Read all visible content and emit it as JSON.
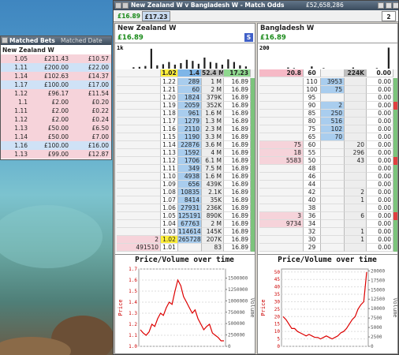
{
  "matched_bets": {
    "title": "Matched Bets",
    "date_header": "Matched Date",
    "runner": "New Zealand W",
    "rows": [
      {
        "odds": "1.05",
        "stake": "£211.43",
        "profit": "£10.57",
        "side": "lay"
      },
      {
        "odds": "1.11",
        "stake": "£200.00",
        "profit": "£22.00",
        "side": "back"
      },
      {
        "odds": "1.14",
        "stake": "£102.63",
        "profit": "£14.37",
        "side": "lay"
      },
      {
        "odds": "1.17",
        "stake": "£100.00",
        "profit": "£17.00",
        "side": "back"
      },
      {
        "odds": "1.12",
        "stake": "£96.17",
        "profit": "£11.54",
        "side": "lay"
      },
      {
        "odds": "1.1",
        "stake": "£2.00",
        "profit": "£0.20",
        "side": "lay"
      },
      {
        "odds": "1.11",
        "stake": "£2.00",
        "profit": "£0.22",
        "side": "lay"
      },
      {
        "odds": "1.12",
        "stake": "£2.00",
        "profit": "£0.24",
        "side": "lay"
      },
      {
        "odds": "1.13",
        "stake": "£50.00",
        "profit": "£6.50",
        "side": "lay"
      },
      {
        "odds": "1.14",
        "stake": "£50.00",
        "profit": "£7.00",
        "side": "lay"
      },
      {
        "odds": "1.16",
        "stake": "£100.00",
        "profit": "£16.00",
        "side": "back"
      },
      {
        "odds": "1.13",
        "stake": "£99.00",
        "profit": "£12.87",
        "side": "lay"
      }
    ]
  },
  "market": {
    "title": "New Zealand W v Bangladesh W - Match Odds",
    "total": "£52,658,286",
    "pnl": "£16.89",
    "stake_box": "£17.23",
    "count": "2",
    "runners": [
      {
        "name": "New Zealand W",
        "pnl": "£16.89",
        "s_button": "S",
        "volume_top": {
          "value": 1000,
          "label": "1k"
        },
        "volume_profile": [
          60,
          80,
          120,
          900,
          150,
          200,
          300,
          180,
          250,
          400,
          350,
          220,
          500,
          300,
          260,
          180,
          420,
          300,
          150,
          100
        ],
        "header": [
          null,
          "1.02",
          "1.4",
          "52.4 M",
          "17.23"
        ],
        "ltp_row": 20,
        "ladder": [
          [
            null,
            "1.22",
            "289",
            "1 M",
            "16.89"
          ],
          [
            null,
            "1.21",
            "60",
            "2 M",
            "16.89"
          ],
          [
            null,
            "1.20",
            "1824",
            "379K",
            "16.89"
          ],
          [
            null,
            "1.19",
            "2059",
            "352K",
            "16.89"
          ],
          [
            null,
            "1.18",
            "961",
            "1.6 M",
            "16.89"
          ],
          [
            null,
            "1.17",
            "1279",
            "1.3 M",
            "16.89"
          ],
          [
            null,
            "1.16",
            "2110",
            "2.3 M",
            "16.89"
          ],
          [
            null,
            "1.15",
            "1190",
            "3.3 M",
            "16.89"
          ],
          [
            null,
            "1.14",
            "22876",
            "3.6 M",
            "16.89"
          ],
          [
            null,
            "1.13",
            "1592",
            "4 M",
            "16.89"
          ],
          [
            null,
            "1.12",
            "1706",
            "6.1 M",
            "16.89"
          ],
          [
            null,
            "1.11",
            "349",
            "7.5 M",
            "16.89"
          ],
          [
            null,
            "1.10",
            "4938",
            "1.6 M",
            "16.89"
          ],
          [
            null,
            "1.09",
            "656",
            "439K",
            "16.89"
          ],
          [
            null,
            "1.08",
            "10835",
            "2.1K",
            "16.89"
          ],
          [
            null,
            "1.07",
            "8414",
            "35K",
            "16.89"
          ],
          [
            null,
            "1.06",
            "27931",
            "236K",
            "16.89"
          ],
          [
            null,
            "1.05",
            "125191",
            "890K",
            "16.89"
          ],
          [
            null,
            "1.04",
            "67763",
            "2 M",
            "16.89"
          ],
          [
            null,
            "1.03",
            "114614",
            "145K",
            "16.89"
          ],
          [
            "2",
            "1.02",
            "265728",
            "207K",
            "16.89"
          ],
          [
            "491510",
            "1.01",
            null,
            "83",
            "16.89"
          ]
        ],
        "chart": {
          "title": "Price/Volume over time",
          "ylabel": "Price",
          "y2label": "Volume",
          "ylim": [
            1.0,
            1.7
          ],
          "yticks": [
            {
              "value": 1.0,
              "label": "1.0"
            },
            {
              "value": 1.1,
              "label": "1.1"
            },
            {
              "value": 1.2,
              "label": "1.2"
            },
            {
              "value": 1.3,
              "label": "1.3"
            },
            {
              "value": 1.4,
              "label": "1.4"
            },
            {
              "value": 1.5,
              "label": "1.5"
            },
            {
              "value": 1.6,
              "label": "1.6"
            },
            {
              "value": 1.7,
              "label": "1.7"
            }
          ],
          "y2lim": [
            0,
            1700000
          ],
          "y2ticks": [
            0,
            250000,
            500000,
            750000,
            1000000,
            1250000,
            1500000
          ],
          "price": [
            1.15,
            1.12,
            1.1,
            1.13,
            1.2,
            1.18,
            1.25,
            1.3,
            1.28,
            1.35,
            1.4,
            1.38,
            1.5,
            1.6,
            1.55,
            1.45,
            1.4,
            1.35,
            1.3,
            1.33,
            1.25,
            1.2,
            1.15,
            1.18,
            1.2,
            1.12,
            1.1,
            1.08,
            1.05,
            1.05
          ]
        }
      },
      {
        "name": "Bangladesh W",
        "pnl": "£16.89",
        "s_button": null,
        "volume_top": 200,
        "volume_profile": [
          0,
          0,
          10,
          5,
          0,
          0,
          20,
          0,
          5,
          0,
          0,
          0,
          0,
          10,
          0,
          0,
          0,
          5,
          0,
          190
        ],
        "header": [
          "20.8",
          "60",
          null,
          "224K",
          "0.00"
        ],
        "ltp_row": null,
        "ladder": [
          [
            null,
            "110",
            "3953",
            null,
            "0.00"
          ],
          [
            null,
            "100",
            "75",
            null,
            "0.00"
          ],
          [
            null,
            "95",
            null,
            null,
            "0.00"
          ],
          [
            null,
            "90",
            "2",
            null,
            "0.00"
          ],
          [
            null,
            "85",
            "250",
            null,
            "0.00"
          ],
          [
            null,
            "80",
            "516",
            null,
            "0.00"
          ],
          [
            null,
            "75",
            "102",
            null,
            "0.00"
          ],
          [
            null,
            "65",
            "70",
            null,
            "0.00"
          ],
          [
            "75",
            "60",
            null,
            "20",
            "0.00"
          ],
          [
            "18",
            "55",
            null,
            "296",
            "0.00"
          ],
          [
            "5583",
            "50",
            null,
            "43",
            "0.00"
          ],
          [
            null,
            "48",
            null,
            null,
            "0.00"
          ],
          [
            null,
            "46",
            null,
            null,
            "0.00"
          ],
          [
            null,
            "44",
            null,
            null,
            "0.00"
          ],
          [
            null,
            "42",
            null,
            "2",
            "0.00"
          ],
          [
            null,
            "40",
            null,
            "1",
            "0.00"
          ],
          [
            null,
            "38",
            null,
            null,
            "0.00"
          ],
          [
            "3",
            "36",
            null,
            "6",
            "0.00"
          ],
          [
            "9734",
            "34",
            null,
            null,
            "0.00"
          ],
          [
            null,
            "32",
            null,
            "1",
            "0.00"
          ],
          [
            null,
            "30",
            null,
            "1",
            "0.00"
          ],
          [
            null,
            "29",
            null,
            null,
            "0.00"
          ]
        ],
        "chart": {
          "title": "Price/Volume over time",
          "ylabel": "Price",
          "y2label": "Volume",
          "ylim": [
            0,
            52
          ],
          "yticks": [
            0,
            5,
            10,
            15,
            20,
            25,
            30,
            35,
            40,
            45,
            50
          ],
          "y2lim": [
            0,
            20500
          ],
          "y2ticks": [
            0,
            2500,
            5000,
            7500,
            10000,
            12500,
            15000,
            17500,
            20000
          ],
          "price": [
            20,
            18,
            15,
            12,
            12,
            10,
            9,
            8,
            7,
            8,
            7,
            6,
            6,
            5,
            6,
            7,
            6,
            5,
            6,
            7,
            9,
            10,
            12,
            15,
            18,
            20,
            25,
            28,
            30,
            50
          ]
        }
      }
    ]
  }
}
